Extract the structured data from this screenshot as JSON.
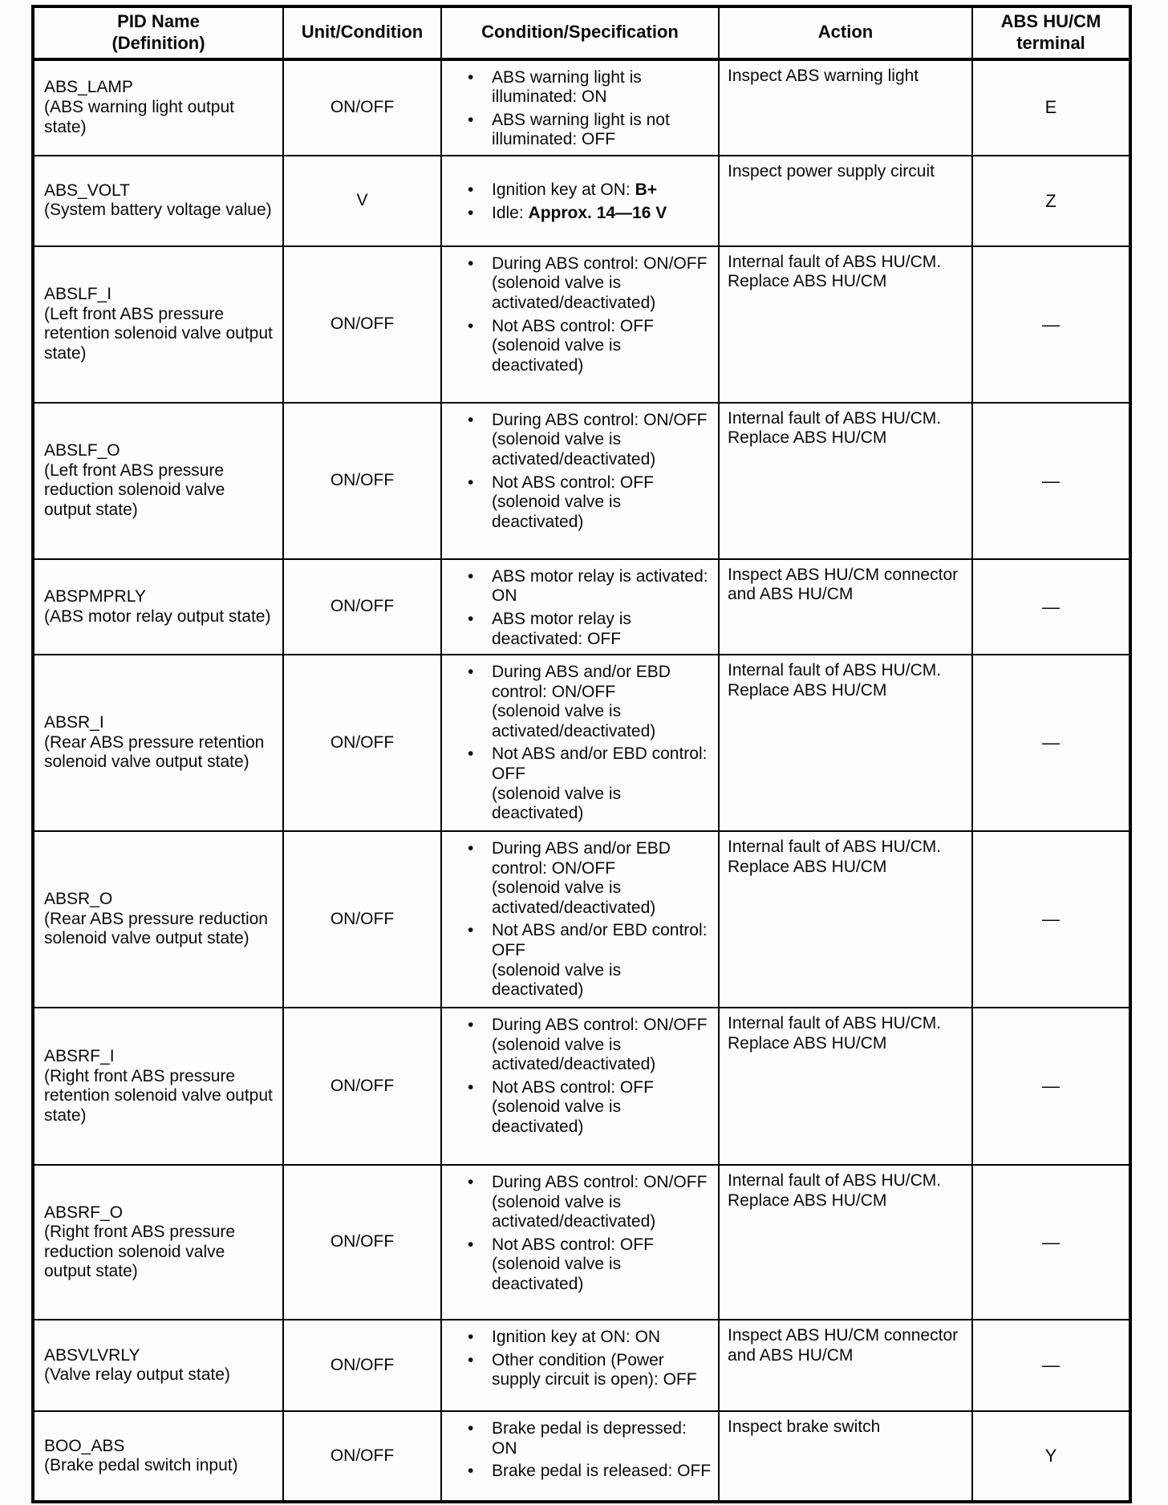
{
  "glyphs": {
    "bullet": "•"
  },
  "table": {
    "headers": [
      "PID Name\n(Definition)",
      "Unit/Condition",
      "Condition/Specification",
      "Action",
      "ABS HU/CM\nterminal"
    ],
    "rows": [
      {
        "pid_name": "ABS_LAMP",
        "pid_definition": "(ABS warning light output state)",
        "unit": "ON/OFF",
        "spec": [
          {
            "text": [
              {
                "t": "ABS warning light is illuminated: ON"
              }
            ]
          },
          {
            "text": [
              {
                "t": "ABS warning light is not illuminated: OFF"
              }
            ]
          }
        ],
        "action": "Inspect ABS warning light",
        "terminal": "E"
      },
      {
        "pid_name": "ABS_VOLT",
        "pid_definition": "(System battery voltage value)",
        "unit": "V",
        "spec": [
          {
            "text": [
              {
                "t": "Ignition key at ON: "
              },
              {
                "t": "B+",
                "b": true
              }
            ]
          },
          {
            "text": [
              {
                "t": "Idle: "
              },
              {
                "t": "Approx. 14—16 V",
                "b": true
              }
            ]
          }
        ],
        "action": "Inspect power supply circuit",
        "terminal": "Z"
      },
      {
        "pid_name": "ABSLF_I",
        "pid_definition": "(Left front ABS pressure retention solenoid valve output state)",
        "unit": "ON/OFF",
        "spec": [
          {
            "text": [
              {
                "t": "During ABS control: ON/OFF"
              }
            ],
            "note": "(solenoid valve is activated/deactivated)"
          },
          {
            "text": [
              {
                "t": "Not ABS control: OFF"
              }
            ],
            "note": "(solenoid valve is deactivated)"
          }
        ],
        "action": "Internal fault of ABS HU/CM. Replace ABS HU/CM",
        "terminal": "—"
      },
      {
        "pid_name": "ABSLF_O",
        "pid_definition": "(Left front ABS pressure reduction solenoid valve output state)",
        "unit": "ON/OFF",
        "spec": [
          {
            "text": [
              {
                "t": "During ABS control: ON/OFF"
              }
            ],
            "note": "(solenoid valve is activated/deactivated)"
          },
          {
            "text": [
              {
                "t": "Not ABS control: OFF"
              }
            ],
            "note": "(solenoid valve is deactivated)"
          }
        ],
        "action": "Internal fault of ABS HU/CM. Replace ABS HU/CM",
        "terminal": "—"
      },
      {
        "pid_name": "ABSPMPRLY",
        "pid_definition": "(ABS motor relay output state)",
        "unit": "ON/OFF",
        "spec": [
          {
            "text": [
              {
                "t": "ABS motor relay is activated: ON"
              }
            ]
          },
          {
            "text": [
              {
                "t": "ABS motor relay is deactivated: OFF"
              }
            ]
          }
        ],
        "action": "Inspect ABS HU/CM connector and ABS HU/CM",
        "terminal": "—"
      },
      {
        "pid_name": "ABSR_I",
        "pid_definition": "(Rear ABS pressure retention solenoid valve output state)",
        "unit": "ON/OFF",
        "spec": [
          {
            "text": [
              {
                "t": "During ABS and/or EBD control: ON/OFF"
              }
            ],
            "note": "(solenoid valve is activated/deactivated)"
          },
          {
            "text": [
              {
                "t": "Not ABS and/or EBD control: OFF"
              }
            ],
            "note": "(solenoid valve is deactivated)"
          }
        ],
        "action": "Internal fault of ABS HU/CM. Replace ABS HU/CM",
        "terminal": "—"
      },
      {
        "pid_name": "ABSR_O",
        "pid_definition": "(Rear ABS pressure reduction solenoid valve output state)",
        "unit": "ON/OFF",
        "spec": [
          {
            "text": [
              {
                "t": "During ABS and/or EBD control: ON/OFF"
              }
            ],
            "note": "(solenoid valve is activated/deactivated)"
          },
          {
            "text": [
              {
                "t": "Not ABS and/or EBD control: OFF"
              }
            ],
            "note": "(solenoid valve is deactivated)"
          }
        ],
        "action": "Internal fault of ABS HU/CM. Replace ABS HU/CM",
        "terminal": "—"
      },
      {
        "pid_name": "ABSRF_I",
        "pid_definition": "(Right front ABS pressure retention solenoid valve output state)",
        "unit": "ON/OFF",
        "spec": [
          {
            "text": [
              {
                "t": "During ABS control: ON/OFF"
              }
            ],
            "note": "(solenoid valve is activated/deactivated)"
          },
          {
            "text": [
              {
                "t": "Not ABS control: OFF"
              }
            ],
            "note": "(solenoid valve is deactivated)"
          }
        ],
        "action": "Internal fault of ABS HU/CM. Replace ABS HU/CM",
        "terminal": "—"
      },
      {
        "pid_name": "ABSRF_O",
        "pid_definition": "(Right front ABS pressure reduction solenoid valve output state)",
        "unit": "ON/OFF",
        "spec": [
          {
            "text": [
              {
                "t": "During ABS control: ON/OFF"
              }
            ],
            "note": "(solenoid valve is activated/deactivated)"
          },
          {
            "text": [
              {
                "t": "Not ABS control: OFF"
              }
            ],
            "note": "(solenoid valve is deactivated)"
          }
        ],
        "action": "Internal fault of ABS HU/CM. Replace ABS HU/CM",
        "terminal": "—"
      },
      {
        "pid_name": "ABSVLVRLY",
        "pid_definition": "(Valve relay output state)",
        "unit": "ON/OFF",
        "spec": [
          {
            "text": [
              {
                "t": "Ignition key at ON: ON"
              }
            ]
          },
          {
            "text": [
              {
                "t": "Other condition (Power supply circuit is open): OFF"
              }
            ]
          }
        ],
        "action": "Inspect ABS HU/CM connector and ABS HU/CM",
        "terminal": "—"
      },
      {
        "pid_name": "BOO_ABS",
        "pid_definition": "(Brake pedal switch input)",
        "unit": "ON/OFF",
        "spec": [
          {
            "text": [
              {
                "t": "Brake pedal is depressed: ON"
              }
            ]
          },
          {
            "text": [
              {
                "t": "Brake pedal is released: OFF"
              }
            ]
          }
        ],
        "action": "Inspect brake switch",
        "terminal": "Y"
      }
    ]
  }
}
